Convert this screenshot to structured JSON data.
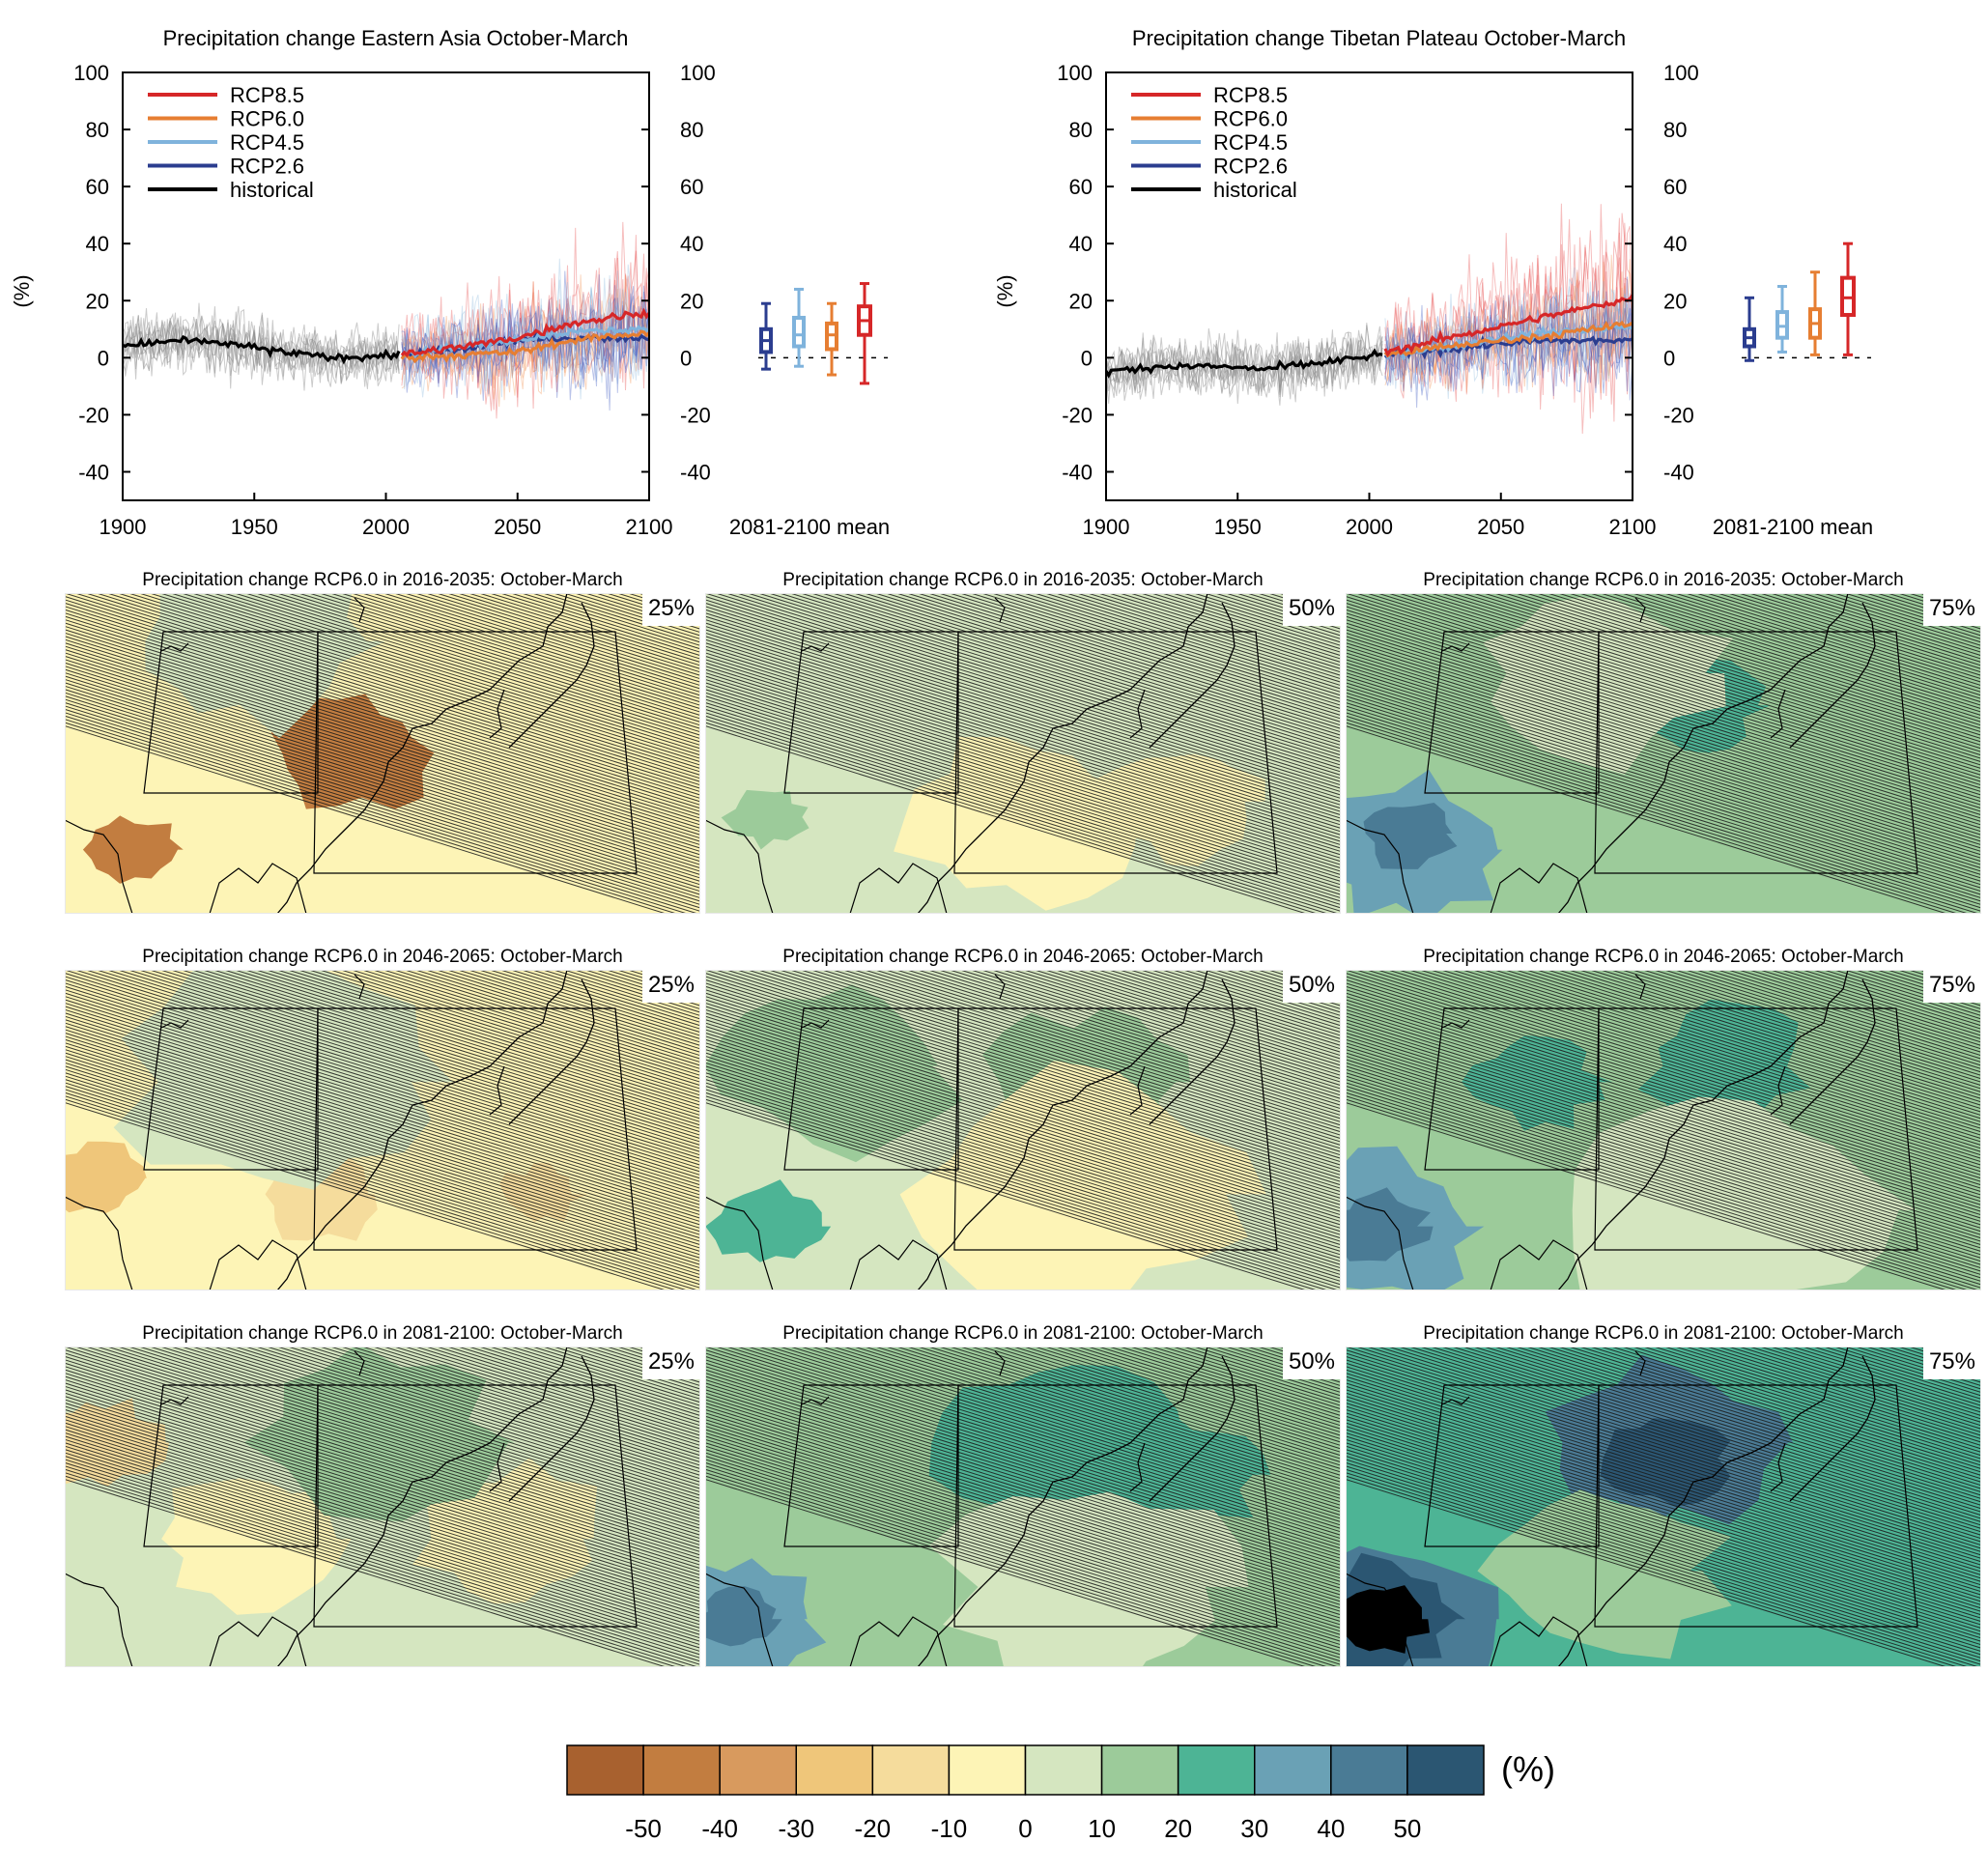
{
  "timeseries_panels": [
    {
      "title": "Precipitation change Eastern Asia October-March",
      "ylabel": "(%)",
      "x_ticks": [
        "1900",
        "1950",
        "2000",
        "2050",
        "2100"
      ],
      "y_ticks": [
        "100",
        "80",
        "60",
        "40",
        "20",
        "0",
        "-20",
        "-40"
      ],
      "box_label": "2081-2100 mean",
      "legend": [
        {
          "name": "RCP8.5",
          "color": "#d62728"
        },
        {
          "name": "RCP6.0",
          "color": "#e67e32"
        },
        {
          "name": "RCP4.5",
          "color": "#7fb3dc"
        },
        {
          "name": "RCP2.6",
          "color": "#2b3d8f"
        },
        {
          "name": "historical",
          "color": "#000000"
        }
      ]
    },
    {
      "title": "Precipitation change Tibetan Plateau October-March",
      "ylabel": "(%)",
      "x_ticks": [
        "1900",
        "1950",
        "2000",
        "2050",
        "2100"
      ],
      "y_ticks": [
        "100",
        "80",
        "60",
        "40",
        "20",
        "0",
        "-20",
        "-40"
      ],
      "box_label": "2081-2100 mean",
      "legend": [
        {
          "name": "RCP8.5",
          "color": "#d62728"
        },
        {
          "name": "RCP6.0",
          "color": "#e67e32"
        },
        {
          "name": "RCP4.5",
          "color": "#7fb3dc"
        },
        {
          "name": "RCP2.6",
          "color": "#2b3d8f"
        },
        {
          "name": "historical",
          "color": "#000000"
        }
      ]
    }
  ],
  "map_panels": [
    {
      "title": "Precipitation change RCP6.0 in 2016-2035: October-March",
      "percentile": "25%",
      "base_level": 5,
      "blobs": [
        [
          0.1,
          0.8,
          0.06,
          1
        ],
        [
          0.45,
          0.5,
          0.1,
          1
        ],
        [
          0.3,
          0.15,
          0.15,
          6
        ]
      ],
      "hatch_stop": 1.0
    },
    {
      "title": "Precipitation change RCP6.0 in 2016-2035: October-March",
      "percentile": "50%",
      "base_level": 6,
      "blobs": [
        [
          0.5,
          0.7,
          0.15,
          5
        ],
        [
          0.75,
          0.65,
          0.1,
          5
        ],
        [
          0.1,
          0.7,
          0.05,
          7
        ]
      ],
      "hatch_stop": 1.0
    },
    {
      "title": "Precipitation change RCP6.0 in 2016-2035: October-March",
      "percentile": "75%",
      "base_level": 7,
      "blobs": [
        [
          0.1,
          0.8,
          0.12,
          9
        ],
        [
          0.1,
          0.75,
          0.06,
          10
        ],
        [
          0.55,
          0.35,
          0.08,
          8
        ],
        [
          0.4,
          0.25,
          0.15,
          6
        ]
      ],
      "hatch_stop": 0.85
    },
    {
      "title": "Precipitation change RCP6.0 in 2046-2065: October-March",
      "percentile": "25%",
      "base_level": 5,
      "blobs": [
        [
          0.05,
          0.65,
          0.06,
          3
        ],
        [
          0.4,
          0.7,
          0.08,
          4
        ],
        [
          0.75,
          0.7,
          0.05,
          4
        ],
        [
          0.35,
          0.35,
          0.2,
          6
        ]
      ],
      "hatch_stop": 1.0
    },
    {
      "title": "Precipitation change RCP6.0 in 2046-2065: October-March",
      "percentile": "50%",
      "base_level": 6,
      "blobs": [
        [
          0.2,
          0.3,
          0.15,
          7
        ],
        [
          0.6,
          0.35,
          0.12,
          7
        ],
        [
          0.1,
          0.8,
          0.07,
          8
        ],
        [
          0.6,
          0.7,
          0.2,
          5
        ]
      ],
      "hatch_stop": 1.0
    },
    {
      "title": "Precipitation change RCP6.0 in 2046-2065: October-March",
      "percentile": "75%",
      "base_level": 7,
      "blobs": [
        [
          0.05,
          0.8,
          0.12,
          9
        ],
        [
          0.05,
          0.8,
          0.06,
          10
        ],
        [
          0.3,
          0.35,
          0.08,
          8
        ],
        [
          0.6,
          0.3,
          0.1,
          8
        ],
        [
          0.6,
          0.75,
          0.2,
          6
        ]
      ],
      "hatch_stop": 0.9
    },
    {
      "title": "Precipitation change RCP6.0 in 2081-2100: October-March",
      "percentile": "25%",
      "base_level": 6,
      "blobs": [
        [
          0.05,
          0.3,
          0.08,
          4
        ],
        [
          0.7,
          0.6,
          0.12,
          5
        ],
        [
          0.3,
          0.6,
          0.12,
          5
        ],
        [
          0.5,
          0.3,
          0.15,
          7
        ]
      ],
      "hatch_stop": 1.0
    },
    {
      "title": "Precipitation change RCP6.0 in 2081-2100: October-March",
      "percentile": "50%",
      "base_level": 7,
      "blobs": [
        [
          0.05,
          0.85,
          0.1,
          9
        ],
        [
          0.05,
          0.85,
          0.05,
          10
        ],
        [
          0.55,
          0.3,
          0.15,
          8
        ],
        [
          0.75,
          0.4,
          0.1,
          8
        ],
        [
          0.6,
          0.75,
          0.18,
          6
        ]
      ],
      "hatch_stop": 0.9
    },
    {
      "title": "Precipitation change RCP6.0 in 2081-2100: October-March",
      "percentile": "75%",
      "base_level": 8,
      "blobs": [
        [
          0.05,
          0.85,
          0.15,
          10
        ],
        [
          0.05,
          0.85,
          0.1,
          11
        ],
        [
          0.05,
          0.85,
          0.06,
          12
        ],
        [
          0.5,
          0.3,
          0.15,
          10
        ],
        [
          0.5,
          0.35,
          0.08,
          11
        ],
        [
          0.4,
          0.7,
          0.15,
          7
        ]
      ],
      "hatch_stop": 0.75
    }
  ],
  "colorbar": {
    "unit": "(%)",
    "tick_labels": [
      "-50",
      "-40",
      "-30",
      "-20",
      "-10",
      "0",
      "10",
      "20",
      "30",
      "40",
      "50"
    ],
    "colors": [
      "#a8612f",
      "#c27d40",
      "#d89a5e",
      "#efc67a",
      "#f5dc9c",
      "#fdf4b6",
      "#d5e6c0",
      "#9ccb9a",
      "#4db495",
      "#6aa1b5",
      "#4a7b95",
      "#2b5672"
    ]
  },
  "chart_data": [
    {
      "type": "line",
      "title": "Precipitation change Eastern Asia October-March",
      "xlabel": "",
      "ylabel": "(%)",
      "xlim": [
        1900,
        2100
      ],
      "ylim": [
        -50,
        100
      ],
      "series": [
        {
          "name": "historical",
          "x": [
            1900,
            1920,
            1940,
            1960,
            1980,
            2005
          ],
          "values": [
            4,
            6,
            5,
            2,
            0,
            1
          ]
        },
        {
          "name": "RCP2.6",
          "x": [
            2006,
            2030,
            2050,
            2070,
            2100
          ],
          "values": [
            1,
            3,
            6,
            7,
            7
          ]
        },
        {
          "name": "RCP4.5",
          "x": [
            2006,
            2030,
            2050,
            2070,
            2100
          ],
          "values": [
            1,
            4,
            6,
            9,
            10
          ]
        },
        {
          "name": "RCP6.0",
          "x": [
            2006,
            2030,
            2050,
            2070,
            2100
          ],
          "values": [
            0,
            1,
            2,
            6,
            9
          ]
        },
        {
          "name": "RCP8.5",
          "x": [
            2006,
            2030,
            2050,
            2070,
            2100
          ],
          "values": [
            1,
            4,
            7,
            12,
            16
          ]
        }
      ],
      "boxplots_2081_2100": [
        {
          "name": "RCP2.6",
          "min": -4,
          "q1": 2,
          "median": 6,
          "q3": 10,
          "max": 19
        },
        {
          "name": "RCP4.5",
          "min": -3,
          "q1": 4,
          "median": 8,
          "q3": 14,
          "max": 24
        },
        {
          "name": "RCP6.0",
          "min": -6,
          "q1": 3,
          "median": 8,
          "q3": 12,
          "max": 19
        },
        {
          "name": "RCP8.5",
          "min": -9,
          "q1": 8,
          "median": 13,
          "q3": 18,
          "max": 26
        }
      ]
    },
    {
      "type": "line",
      "title": "Precipitation change Tibetan Plateau October-March",
      "xlabel": "",
      "ylabel": "(%)",
      "xlim": [
        1900,
        2100
      ],
      "ylim": [
        -50,
        100
      ],
      "series": [
        {
          "name": "historical",
          "x": [
            1900,
            1920,
            1940,
            1960,
            1980,
            2005
          ],
          "values": [
            -5,
            -3,
            -3,
            -4,
            -2,
            1
          ]
        },
        {
          "name": "RCP2.6",
          "x": [
            2006,
            2030,
            2050,
            2070,
            2100
          ],
          "values": [
            1,
            3,
            5,
            6,
            6
          ]
        },
        {
          "name": "RCP4.5",
          "x": [
            2006,
            2030,
            2050,
            2070,
            2100
          ],
          "values": [
            1,
            4,
            7,
            9,
            11
          ]
        },
        {
          "name": "RCP6.0",
          "x": [
            2006,
            2030,
            2050,
            2070,
            2100
          ],
          "values": [
            1,
            4,
            6,
            8,
            12
          ]
        },
        {
          "name": "RCP8.5",
          "x": [
            2006,
            2030,
            2050,
            2070,
            2100
          ],
          "values": [
            2,
            7,
            11,
            15,
            21
          ]
        }
      ],
      "boxplots_2081_2100": [
        {
          "name": "RCP2.6",
          "min": -1,
          "q1": 4,
          "median": 7,
          "q3": 10,
          "max": 21
        },
        {
          "name": "RCP4.5",
          "min": 2,
          "q1": 7,
          "median": 11,
          "q3": 16,
          "max": 25
        },
        {
          "name": "RCP6.0",
          "min": 1,
          "q1": 7,
          "median": 12,
          "q3": 17,
          "max": 30
        },
        {
          "name": "RCP8.5",
          "min": 1,
          "q1": 15,
          "median": 21,
          "q3": 28,
          "max": 40
        }
      ]
    }
  ]
}
